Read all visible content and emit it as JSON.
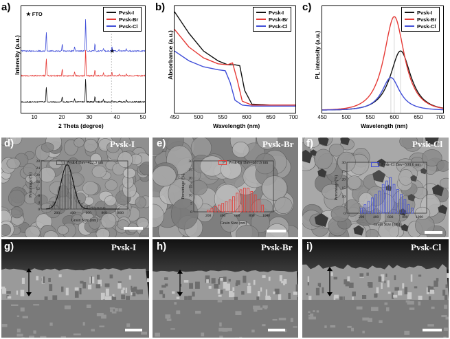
{
  "panels": {
    "a": {
      "label": "a)",
      "ylabel": "Intensity (a.u.)",
      "xlabel": "2 Theta (degree)",
      "annotation": "★ FTO",
      "ticks": [
        "10",
        "20",
        "30",
        "40",
        "50"
      ],
      "legend": [
        "Pvsk-I",
        "Pvsk-Br",
        "Pvsk-Cl"
      ]
    },
    "b": {
      "label": "b)",
      "ylabel": "Absorbance (a.u.)",
      "xlabel": "Wavelength (nm)",
      "ticks": [
        "450",
        "500",
        "550",
        "600",
        "650",
        "700"
      ],
      "legend": [
        "Pvsk-I",
        "Pvsk-Br",
        "Pvsk-Cl"
      ]
    },
    "c": {
      "label": "c)",
      "ylabel": "PL intensity (a.u.)",
      "xlabel": "Wavelength (nm)",
      "ticks": [
        "450",
        "500",
        "550",
        "600",
        "650",
        "700"
      ],
      "legend": [
        "Pvsk-I",
        "Pvsk-Br",
        "Pvsk-Cl"
      ]
    },
    "d": {
      "label": "d)",
      "title": "Pvsk-I",
      "legend": "Pvsk-I  Dav=422.3 nm",
      "color": "#555555",
      "yticks": [
        "0",
        "4",
        "8",
        "12",
        "16",
        "20",
        "24",
        "28"
      ],
      "xticks": [
        "200",
        "400",
        "600",
        "800",
        "1000"
      ],
      "xlabel": "Grain Size (nm)",
      "ylabel": "Percentage (%)"
    },
    "e": {
      "label": "e)",
      "title": "Pvsk-Br",
      "legend": "Pvsk-Br  Dav=667.6 nm",
      "color": "#e53935",
      "yticks": [
        "0",
        "5",
        "10",
        "15",
        "20",
        "25",
        "30"
      ],
      "xticks": [
        "200",
        "400",
        "600",
        "800",
        "1000"
      ],
      "xlabel": "Grain Size (nm)",
      "ylabel": "Percentage (%)"
    },
    "f": {
      "label": "f)",
      "title": "Pvsk-Cl",
      "legend": "Pvsk-Cl  Dav=508.6 nm",
      "color": "#3f4dd8",
      "yticks": [
        "0",
        "5",
        "10",
        "15",
        "20",
        "25",
        "30"
      ],
      "xticks": [
        "200",
        "400",
        "600",
        "800",
        "1000"
      ],
      "xlabel": "Grain Size (nm)",
      "ylabel": "Percentage (%)"
    },
    "g": {
      "label": "g)",
      "title": "Pvsk-I"
    },
    "h": {
      "label": "h)",
      "title": "Pvsk-Br"
    },
    "i": {
      "label": "i)",
      "title": "Pvsk-Cl"
    }
  },
  "colors": {
    "Pvsk-I": "#111111",
    "Pvsk-Br": "#e53935",
    "Pvsk-Cl": "#3f4dd8"
  },
  "chart_data": [
    {
      "type": "line",
      "panel": "a",
      "xlabel": "2 Theta (degree)",
      "ylabel": "Intensity (a.u.)",
      "xlim": [
        5,
        50
      ],
      "peaks_2theta": [
        14.1,
        19.9,
        24.4,
        28.4,
        31.8,
        34.9,
        38.0,
        40.6,
        43.2
      ],
      "fto_marker_2theta": 37.8,
      "series": [
        {
          "name": "Pvsk-I",
          "offset": 0,
          "peak_heights": [
            40,
            15,
            8,
            60,
            14,
            6,
            4,
            3,
            5
          ]
        },
        {
          "name": "Pvsk-Br",
          "offset": 1,
          "peak_heights": [
            45,
            18,
            10,
            70,
            16,
            7,
            9,
            3,
            5
          ]
        },
        {
          "name": "Pvsk-Cl",
          "offset": 2,
          "peak_heights": [
            50,
            18,
            12,
            85,
            18,
            8,
            12,
            4,
            6
          ]
        }
      ]
    },
    {
      "type": "line",
      "panel": "b",
      "xlabel": "Wavelength (nm)",
      "ylabel": "Absorbance (a.u.)",
      "xlim": [
        450,
        700
      ],
      "series": [
        {
          "name": "Pvsk-I",
          "x": [
            450,
            480,
            510,
            540,
            560,
            575,
            585,
            595,
            610,
            650,
            700
          ],
          "y": [
            1.0,
            0.78,
            0.6,
            0.5,
            0.46,
            0.46,
            0.45,
            0.2,
            0.06,
            0.05,
            0.05
          ]
        },
        {
          "name": "Pvsk-Br",
          "x": [
            450,
            480,
            510,
            540,
            560,
            570,
            580,
            590,
            610,
            650,
            700
          ],
          "y": [
            0.82,
            0.64,
            0.53,
            0.47,
            0.46,
            0.48,
            0.3,
            0.09,
            0.05,
            0.05,
            0.05
          ]
        },
        {
          "name": "Pvsk-Cl",
          "x": [
            450,
            480,
            510,
            540,
            555,
            565,
            575,
            590,
            610,
            650,
            700
          ],
          "y": [
            0.6,
            0.5,
            0.44,
            0.41,
            0.4,
            0.28,
            0.1,
            0.05,
            0.04,
            0.04,
            0.04
          ]
        }
      ]
    },
    {
      "type": "line",
      "panel": "c",
      "xlabel": "Wavelength (nm)",
      "ylabel": "PL intensity (a.u.)",
      "xlim": [
        450,
        700
      ],
      "series": [
        {
          "name": "Pvsk-I",
          "center": 612,
          "height": 0.6,
          "width": 28
        },
        {
          "name": "Pvsk-Br",
          "center": 599,
          "height": 0.95,
          "width": 28
        },
        {
          "name": "Pvsk-Cl",
          "center": 592,
          "height": 0.33,
          "width": 24
        }
      ]
    },
    {
      "type": "bar",
      "panel": "d",
      "series": [
        {
          "name": "Pvsk-I  Dav=422.3 nm",
          "x": [
            120,
            160,
            200,
            240,
            280,
            320,
            360,
            400,
            440,
            480,
            520,
            560,
            600,
            640,
            680,
            720,
            760,
            800,
            840,
            880
          ],
          "values": [
            2,
            4,
            8,
            13,
            20,
            26,
            22,
            16,
            10,
            5,
            3,
            2,
            2,
            1,
            1,
            1,
            1,
            1,
            0,
            0
          ]
        }
      ],
      "xlim": [
        0,
        1100
      ],
      "ylim": [
        0,
        28
      ]
    },
    {
      "type": "bar",
      "panel": "e",
      "series": [
        {
          "name": "Pvsk-Br  Dav=667.6 nm",
          "x": [
            200,
            250,
            300,
            350,
            400,
            450,
            500,
            550,
            600,
            650,
            700,
            750,
            800,
            850,
            900,
            950
          ],
          "values": [
            1,
            2,
            3,
            4,
            5,
            6,
            7,
            9,
            11,
            13,
            14,
            14,
            12,
            10,
            7,
            4
          ]
        }
      ],
      "xlim": [
        0,
        1100
      ],
      "ylim": [
        0,
        30
      ]
    },
    {
      "type": "bar",
      "panel": "f",
      "series": [
        {
          "name": "Pvsk-Cl  Dav=508.6 nm",
          "x": [
            200,
            250,
            300,
            350,
            400,
            450,
            500,
            550,
            600,
            650,
            700,
            750,
            800,
            850,
            900
          ],
          "values": [
            3,
            5,
            7,
            9,
            11,
            13,
            17,
            19,
            21,
            17,
            14,
            11,
            8,
            5,
            3
          ]
        }
      ],
      "xlim": [
        0,
        1100
      ],
      "ylim": [
        0,
        30
      ]
    }
  ]
}
